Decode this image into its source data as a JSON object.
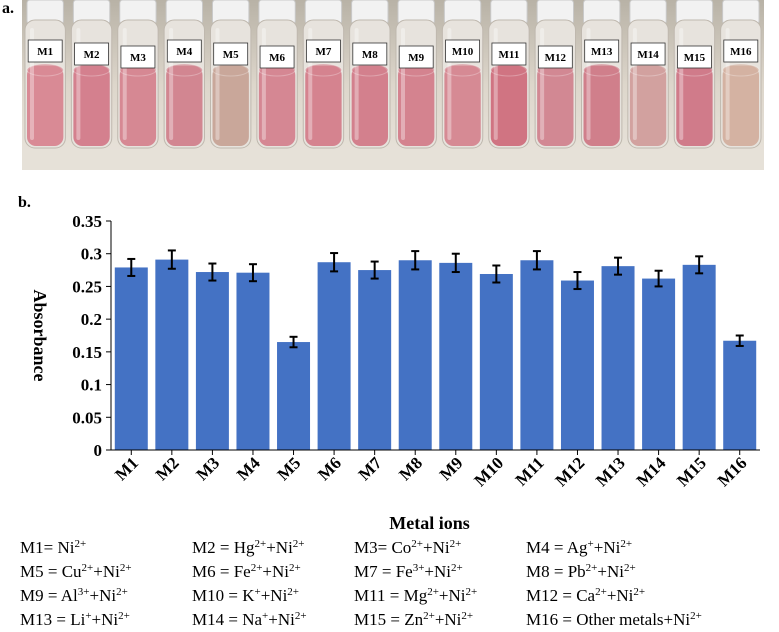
{
  "panel_a_label": "a.",
  "panel_b_label": "b.",
  "vial_labels": [
    "M1",
    "M2",
    "M3",
    "M4",
    "M5",
    "M6",
    "M7",
    "M8",
    "M9",
    "M10",
    "M11",
    "M12",
    "M13",
    "M14",
    "M15",
    "M16"
  ],
  "vial_colors": [
    "#d98a95",
    "#d4808e",
    "#d68893",
    "#d28691",
    "#c9a79a",
    "#d58793",
    "#d5838f",
    "#d3808d",
    "#d4838f",
    "#d68a94",
    "#d07482",
    "#d28893",
    "#d07f8b",
    "#d2a19f",
    "#d07b8a",
    "#d4b2a2"
  ],
  "chart_data": {
    "type": "bar",
    "categories": [
      "M1",
      "M2",
      "M3",
      "M4",
      "M5",
      "M6",
      "M7",
      "M8",
      "M9",
      "M10",
      "M11",
      "M12",
      "M13",
      "M14",
      "M15",
      "M16"
    ],
    "values": [
      0.279,
      0.291,
      0.272,
      0.271,
      0.165,
      0.287,
      0.275,
      0.29,
      0.286,
      0.269,
      0.29,
      0.259,
      0.281,
      0.262,
      0.283,
      0.167
    ],
    "errors": [
      0.013,
      0.014,
      0.013,
      0.013,
      0.008,
      0.014,
      0.013,
      0.014,
      0.014,
      0.013,
      0.014,
      0.013,
      0.013,
      0.012,
      0.013,
      0.008
    ],
    "xlabel": "Metal ions",
    "ylabel": "Absorbance",
    "ylim": [
      0,
      0.35
    ],
    "yticks": [
      "0",
      "0.05",
      "0.1",
      "0.15",
      "0.2",
      "0.25",
      "0.3",
      "0.35"
    ],
    "bar_color": "#4472c4",
    "grid": false
  },
  "legend_rows": [
    [
      {
        "pre": "M1= Ni",
        "s1": "2+",
        "mid": "",
        "s2": "",
        "post": ""
      },
      {
        "pre": "M2 = Hg",
        "s1": "2+",
        "mid": "+Ni",
        "s2": "2+",
        "post": ""
      },
      {
        "pre": "M3= Co",
        "s1": "2+",
        "mid": "+Ni",
        "s2": "2+",
        "post": ""
      },
      {
        "pre": "M4 = Ag",
        "s1": "+",
        "mid": "+Ni",
        "s2": "2+",
        "post": ""
      }
    ],
    [
      {
        "pre": "M5 = Cu",
        "s1": "2+",
        "mid": "+Ni",
        "s2": "2+",
        "post": ""
      },
      {
        "pre": "M6 = Fe",
        "s1": "2+",
        "mid": "+Ni",
        "s2": "2+",
        "post": ""
      },
      {
        "pre": "M7 = Fe",
        "s1": "3+",
        "mid": "+Ni",
        "s2": "2+",
        "post": ""
      },
      {
        "pre": "M8 = Pb",
        "s1": "2+",
        "mid": "+Ni",
        "s2": "2+",
        "post": ""
      }
    ],
    [
      {
        "pre": "M9 = Al",
        "s1": "3+",
        "mid": "+Ni",
        "s2": "2+",
        "post": ""
      },
      {
        "pre": "M10 = K",
        "s1": "+",
        "mid": "+Ni",
        "s2": "2+",
        "post": ""
      },
      {
        "pre": "M11 = Mg",
        "s1": "2+",
        "mid": "+Ni",
        "s2": "2+",
        "post": ""
      },
      {
        "pre": "M12 = Ca",
        "s1": "2+",
        "mid": "+Ni",
        "s2": "2+",
        "post": ""
      }
    ],
    [
      {
        "pre": "M13 = Li",
        "s1": "+",
        "mid": "+Ni",
        "s2": "2+",
        "post": ""
      },
      {
        "pre": "M14 = Na",
        "s1": "+",
        "mid": "+Ni",
        "s2": "2+",
        "post": ""
      },
      {
        "pre": "M15 = Zn",
        "s1": "2+",
        "mid": "+Ni",
        "s2": "2+",
        "post": ""
      },
      {
        "pre": "M16 = Other metals+Ni",
        "s1": "2+",
        "mid": "",
        "s2": "",
        "post": ""
      }
    ]
  ]
}
